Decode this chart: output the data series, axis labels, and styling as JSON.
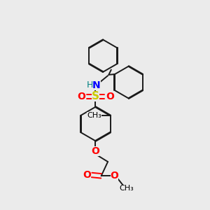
{
  "background_color": "#ebebeb",
  "bond_color": "#1a1a1a",
  "bond_width": 1.4,
  "atom_colors": {
    "N": "#0000ff",
    "S": "#cccc00",
    "O": "#ff0000",
    "H": "#008080"
  }
}
